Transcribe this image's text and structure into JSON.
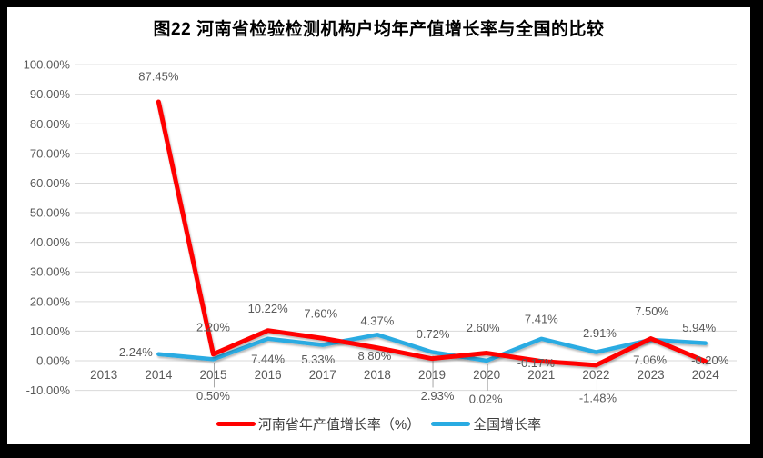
{
  "title": "图22  河南省检验检测机构户均年产值增长率与全国的比较",
  "chart_data": {
    "type": "line",
    "title": "图22  河南省检验检测机构户均年产值增长率与全国的比较",
    "categories": [
      "2013",
      "2014",
      "2015",
      "2016",
      "2017",
      "2018",
      "2019",
      "2020",
      "2021",
      "2022",
      "2023",
      "2024"
    ],
    "series": [
      {
        "name": "河南省年产值增长率（%）",
        "color": "#FF0000",
        "values": [
          null,
          87.45,
          2.2,
          10.22,
          7.6,
          4.37,
          0.72,
          2.6,
          -0.17,
          -1.48,
          7.5,
          -0.2
        ],
        "data_labels": [
          null,
          "87.45%",
          "2.20%",
          "10.22%",
          "7.60%",
          "4.37%",
          "0.72%",
          "2.60%",
          "-0.17%",
          "-1.48%",
          "7.50%",
          "-0.20%"
        ],
        "label_offsets": [
          null,
          [
            0,
            -28
          ],
          [
            0,
            -30
          ],
          [
            0,
            -24
          ],
          [
            -2,
            -27
          ],
          [
            0,
            -30
          ],
          [
            1,
            -27
          ],
          [
            -4,
            -28
          ],
          [
            -6,
            2
          ],
          [
            2,
            36
          ],
          [
            1,
            -30
          ],
          [
            5,
            -1
          ]
        ],
        "leader_indices": [
          9
        ]
      },
      {
        "name": "全国增长率",
        "color": "#29ABE2",
        "values": [
          null,
          2.24,
          0.5,
          7.44,
          5.33,
          8.8,
          2.93,
          0.02,
          7.41,
          2.91,
          7.06,
          5.94
        ],
        "data_labels": [
          null,
          "2.24%",
          "0.50%",
          "7.44%",
          "5.33%",
          "8.80%",
          "2.93%",
          "0.02%",
          "7.41%",
          "2.91%",
          "7.06%",
          "5.94%"
        ],
        "label_offsets": [
          null,
          [
            -25,
            -2
          ],
          [
            0,
            40
          ],
          [
            0,
            22
          ],
          [
            -5,
            16
          ],
          [
            -3,
            23
          ],
          [
            6,
            48
          ],
          [
            -1,
            42
          ],
          [
            0,
            -22
          ],
          [
            4,
            -21
          ],
          [
            -1,
            22
          ],
          [
            -7,
            -17
          ]
        ],
        "leader_indices": [
          2,
          6,
          7
        ]
      }
    ],
    "ylim": [
      -10,
      100
    ],
    "ytick_step": 10,
    "ytick_labels": [
      "100.00%",
      "90.00%",
      "80.00%",
      "70.00%",
      "60.00%",
      "50.00%",
      "40.00%",
      "30.00%",
      "20.00%",
      "10.00%",
      "0.00%",
      "-10.00%"
    ],
    "grid": true,
    "legend_position": "bottom",
    "colors": {
      "grid": "#D9D9D9",
      "axis_text": "#595959",
      "data_label_text": "#595959",
      "leader_line": "#A6A6A6",
      "title_text": "#000000",
      "legend_text": "#3d3d3d",
      "frame": "#000000",
      "background": "#FFFFFF"
    }
  }
}
